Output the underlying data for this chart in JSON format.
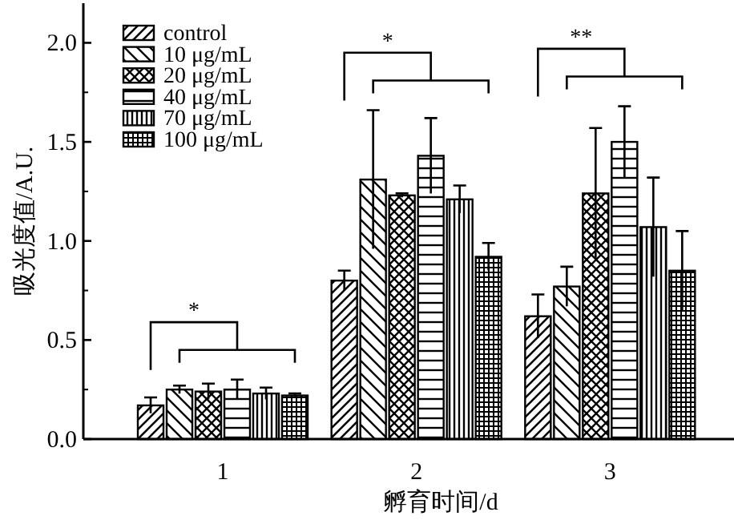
{
  "chart_data": {
    "type": "bar",
    "xlabel": "孵育时间/d",
    "ylabel": "吸光度值/A.U.",
    "categories": [
      "1",
      "2",
      "3"
    ],
    "series": [
      {
        "name": "control",
        "color": "#000000",
        "values": [
          0.17,
          0.8,
          0.62
        ],
        "errors": [
          0.04,
          0.05,
          0.11
        ]
      },
      {
        "name": "10 μg/mL",
        "color": "#000000",
        "values": [
          0.25,
          1.31,
          0.77
        ],
        "errors": [
          0.02,
          0.35,
          0.1
        ]
      },
      {
        "name": "20 μg/mL",
        "color": "#000000",
        "values": [
          0.24,
          1.23,
          1.24
        ],
        "errors": [
          0.04,
          0.01,
          0.33
        ]
      },
      {
        "name": "40 μg/mL",
        "color": "#000000",
        "values": [
          0.25,
          1.43,
          1.5
        ],
        "errors": [
          0.05,
          0.19,
          0.18
        ]
      },
      {
        "name": "70 μg/mL",
        "color": "#000000",
        "values": [
          0.23,
          1.21,
          1.07
        ],
        "errors": [
          0.03,
          0.07,
          0.25
        ]
      },
      {
        "name": "100 μg/mL",
        "color": "#000000",
        "values": [
          0.22,
          0.92,
          0.85
        ],
        "errors": [
          0.01,
          0.07,
          0.2
        ]
      }
    ],
    "ylim": [
      0,
      2.2
    ],
    "yticks": [
      {
        "value": 0,
        "label": "0.0"
      },
      {
        "value": 0.5,
        "label": "0.5"
      },
      {
        "value": 1,
        "label": "1.0"
      },
      {
        "value": 1.5,
        "label": "1.5"
      },
      {
        "value": 2,
        "label": "2.0"
      }
    ],
    "annotations": [
      "*",
      "*",
      "**"
    ],
    "legend": "top left",
    "grid": false
  }
}
